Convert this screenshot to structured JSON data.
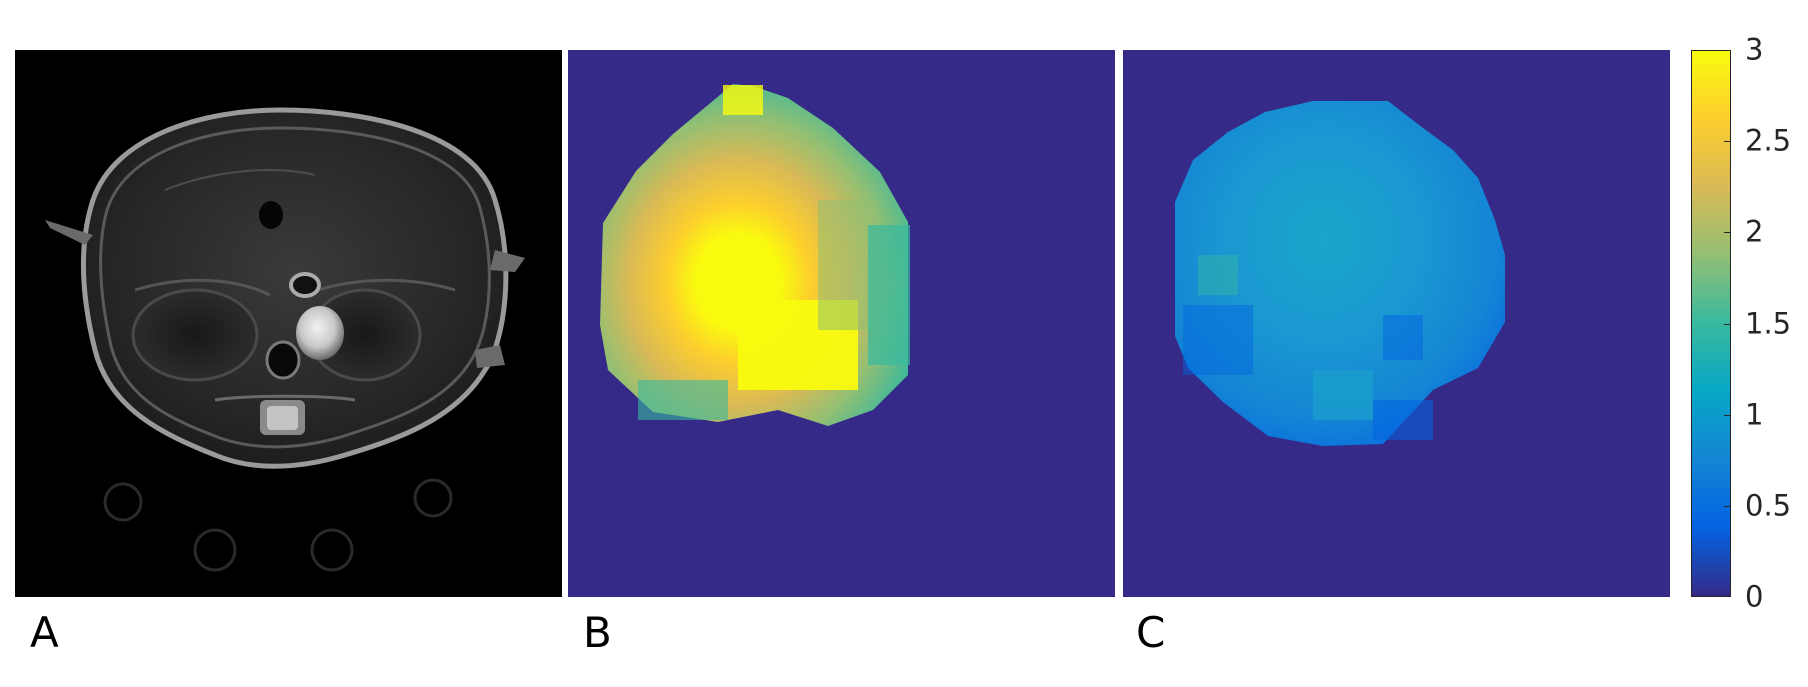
{
  "panels": [
    {
      "id": "A",
      "label": "A",
      "kind": "grayscale-mri-slice"
    },
    {
      "id": "B",
      "label": "B",
      "kind": "parametric-map"
    },
    {
      "id": "C",
      "label": "C",
      "kind": "parametric-map"
    }
  ],
  "colorbar": {
    "colormap": "parula",
    "range": [
      0,
      3
    ],
    "ticks": [
      "0",
      "0.5",
      "1",
      "1.5",
      "2",
      "2.5",
      "3"
    ],
    "colors": [
      "#352a87",
      "#0363e1",
      "#1485d4",
      "#06a7c6",
      "#38b99e",
      "#92bf73",
      "#d9ba56",
      "#fcce2e",
      "#f9fb0e"
    ]
  }
}
